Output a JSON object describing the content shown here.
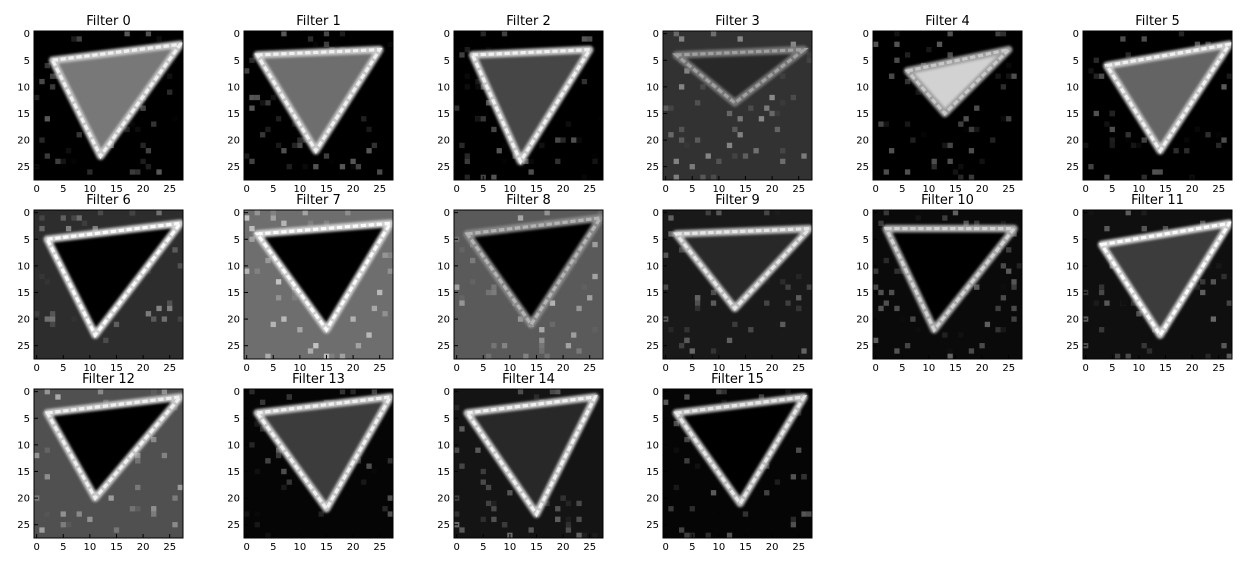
{
  "chart_data": {
    "type": "heatmap",
    "colormap": "gray",
    "background": "#000000",
    "image_size": [
      28,
      28
    ],
    "grid": false,
    "ticks": [
      0,
      5,
      10,
      15,
      20,
      25
    ],
    "xlim": [
      0,
      27
    ],
    "ylim": [
      27,
      0
    ],
    "panels": [
      {
        "title": "Filter 0"
      },
      {
        "title": "Filter 1"
      },
      {
        "title": "Filter 2"
      },
      {
        "title": "Filter 3"
      },
      {
        "title": "Filter 4"
      },
      {
        "title": "Filter 5"
      },
      {
        "title": "Filter 6"
      },
      {
        "title": "Filter 7"
      },
      {
        "title": "Filter 8"
      },
      {
        "title": "Filter 9"
      },
      {
        "title": "Filter 10"
      },
      {
        "title": "Filter 11"
      },
      {
        "title": "Filter 12"
      },
      {
        "title": "Filter 13"
      },
      {
        "title": "Filter 14"
      },
      {
        "title": "Filter 15"
      }
    ]
  }
}
